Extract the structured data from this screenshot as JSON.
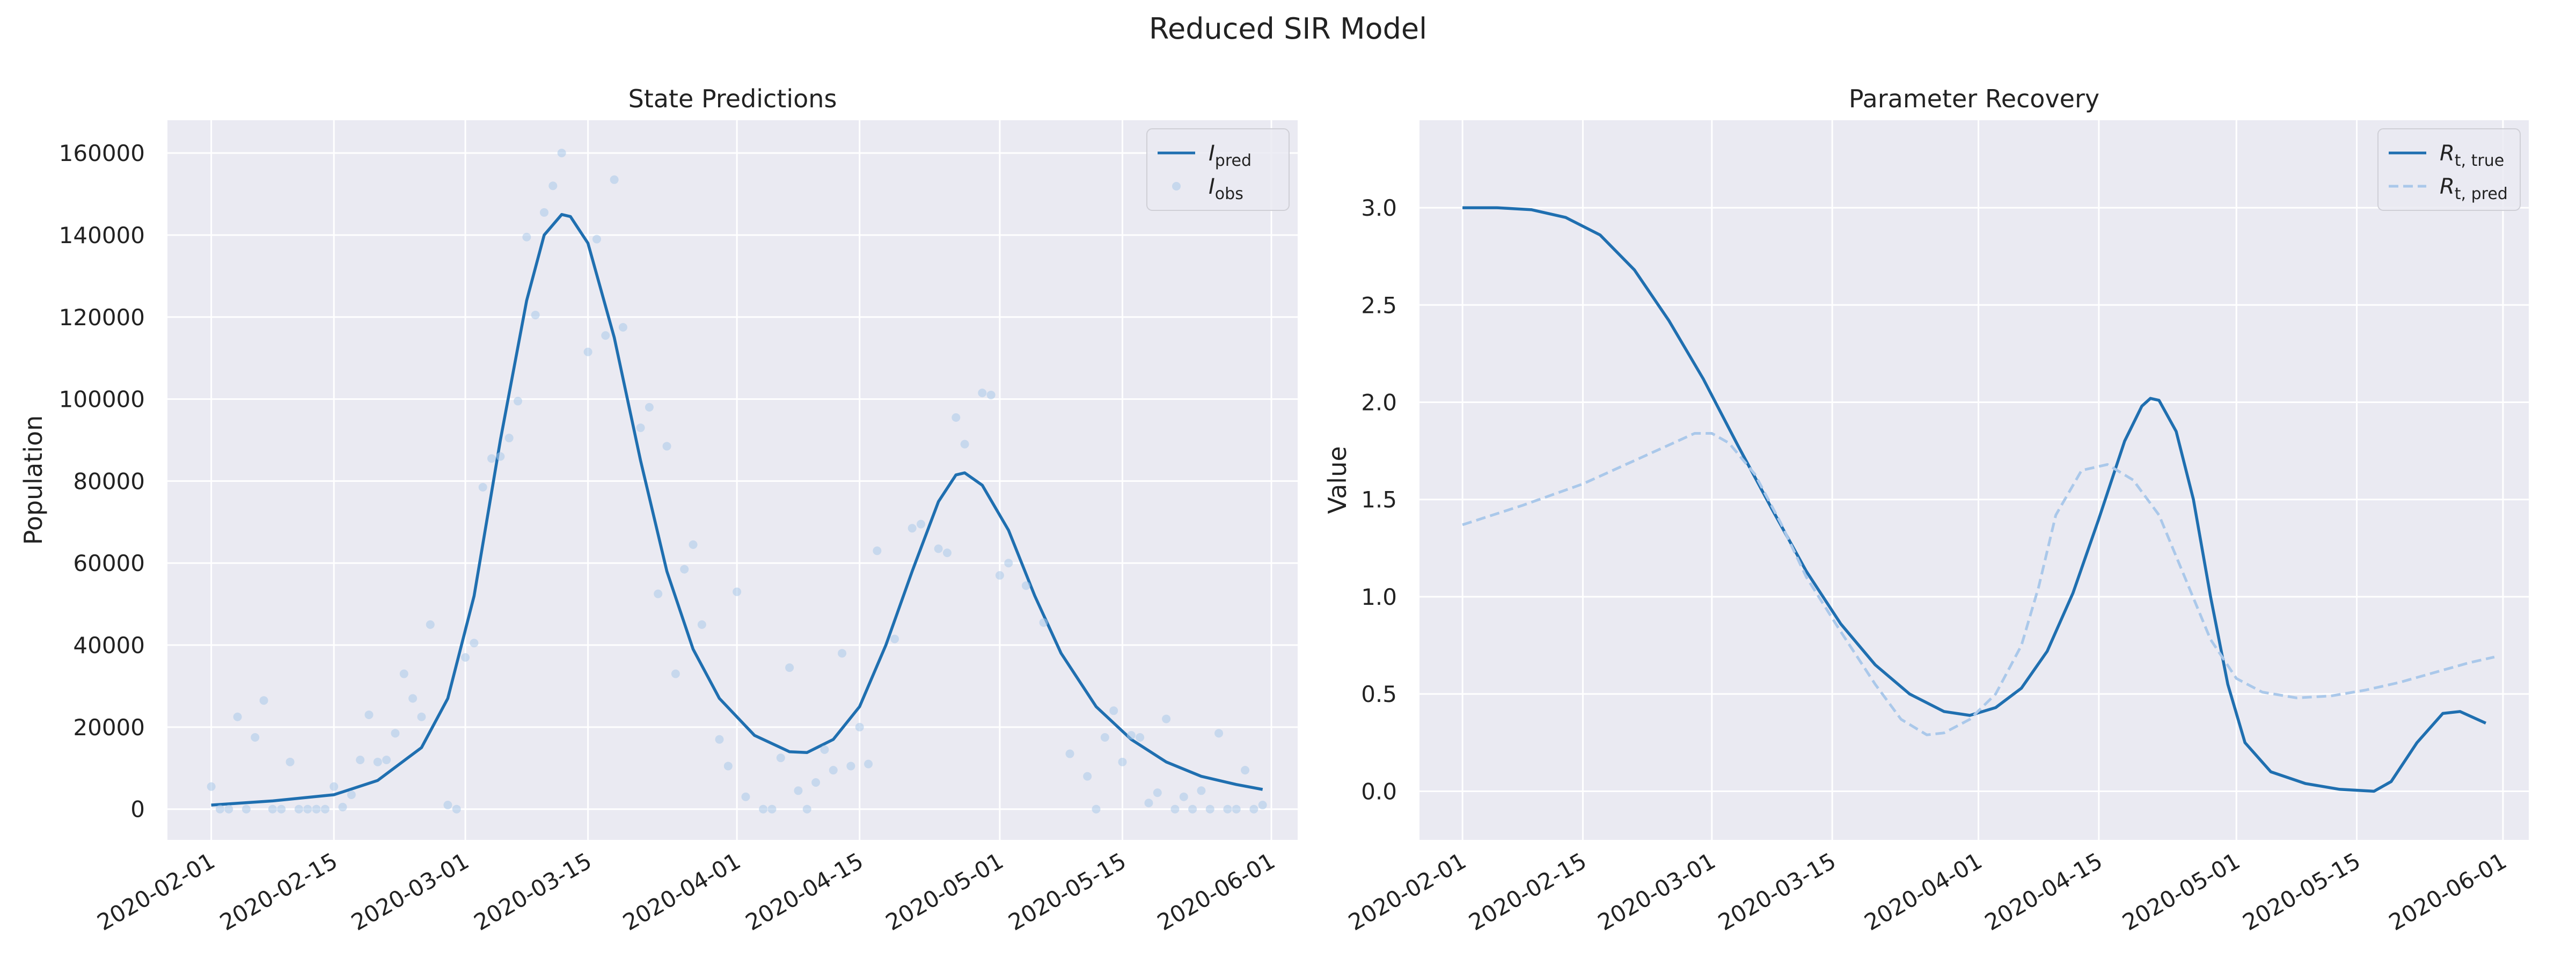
{
  "suptitle": "Reduced SIR Model",
  "colors": {
    "pred": "#1f6fb0",
    "obs": "#aac8ea",
    "panel_bg": "#eaeaf2",
    "grid": "#ffffff"
  },
  "chart_data": [
    {
      "type": "line",
      "title": "State Predictions",
      "xlabel": "",
      "ylabel": "Population",
      "xlim": [
        "2020-01-27",
        "2020-06-04"
      ],
      "ylim": [
        -7500,
        168000
      ],
      "grid": true,
      "legend_position": "top-right",
      "yticks": [
        "0",
        "20000",
        "40000",
        "60000",
        "80000",
        "100000",
        "120000",
        "140000",
        "160000"
      ],
      "xticks": [
        "2020-02-01",
        "2020-02-15",
        "2020-03-01",
        "2020-03-15",
        "2020-04-01",
        "2020-04-15",
        "2020-05-01",
        "2020-05-15",
        "2020-06-01"
      ],
      "series": [
        {
          "name_main": "I",
          "name_sub": "pred",
          "style": "solid",
          "points": [
            [
              "2020-02-01",
              1000
            ],
            [
              "2020-02-08",
              2000
            ],
            [
              "2020-02-15",
              3500
            ],
            [
              "2020-02-20",
              7000
            ],
            [
              "2020-02-25",
              15000
            ],
            [
              "2020-02-28",
              27000
            ],
            [
              "2020-03-02",
              52000
            ],
            [
              "2020-03-05",
              90000
            ],
            [
              "2020-03-08",
              124000
            ],
            [
              "2020-03-10",
              140000
            ],
            [
              "2020-03-12",
              145000
            ],
            [
              "2020-03-13",
              144500
            ],
            [
              "2020-03-15",
              138000
            ],
            [
              "2020-03-18",
              115000
            ],
            [
              "2020-03-21",
              85000
            ],
            [
              "2020-03-24",
              58000
            ],
            [
              "2020-03-27",
              39000
            ],
            [
              "2020-03-30",
              27000
            ],
            [
              "2020-04-03",
              18000
            ],
            [
              "2020-04-07",
              14000
            ],
            [
              "2020-04-09",
              13800
            ],
            [
              "2020-04-12",
              17000
            ],
            [
              "2020-04-15",
              25000
            ],
            [
              "2020-04-18",
              40000
            ],
            [
              "2020-04-21",
              58000
            ],
            [
              "2020-04-24",
              75000
            ],
            [
              "2020-04-26",
              81500
            ],
            [
              "2020-04-27",
              82000
            ],
            [
              "2020-04-29",
              79000
            ],
            [
              "2020-05-02",
              68000
            ],
            [
              "2020-05-05",
              52000
            ],
            [
              "2020-05-08",
              38000
            ],
            [
              "2020-05-12",
              25000
            ],
            [
              "2020-05-16",
              17000
            ],
            [
              "2020-05-20",
              11500
            ],
            [
              "2020-05-24",
              8000
            ],
            [
              "2020-05-28",
              6000
            ],
            [
              "2020-05-31",
              4800
            ]
          ]
        },
        {
          "name_main": "I",
          "name_sub": "obs",
          "style": "scatter",
          "points": [
            [
              "2020-02-01",
              5500
            ],
            [
              "2020-02-02",
              0
            ],
            [
              "2020-02-03",
              0
            ],
            [
              "2020-02-04",
              22500
            ],
            [
              "2020-02-05",
              0
            ],
            [
              "2020-02-06",
              17500
            ],
            [
              "2020-02-07",
              26500
            ],
            [
              "2020-02-08",
              0
            ],
            [
              "2020-02-09",
              0
            ],
            [
              "2020-02-10",
              11500
            ],
            [
              "2020-02-11",
              0
            ],
            [
              "2020-02-12",
              0
            ],
            [
              "2020-02-13",
              0
            ],
            [
              "2020-02-14",
              0
            ],
            [
              "2020-02-15",
              5500
            ],
            [
              "2020-02-16",
              500
            ],
            [
              "2020-02-17",
              3500
            ],
            [
              "2020-02-18",
              12000
            ],
            [
              "2020-02-19",
              23000
            ],
            [
              "2020-02-20",
              11500
            ],
            [
              "2020-02-21",
              12000
            ],
            [
              "2020-02-22",
              18500
            ],
            [
              "2020-02-23",
              33000
            ],
            [
              "2020-02-24",
              27000
            ],
            [
              "2020-02-25",
              22500
            ],
            [
              "2020-02-26",
              45000
            ],
            [
              "2020-02-28",
              1000
            ],
            [
              "2020-02-29",
              0
            ],
            [
              "2020-03-01",
              37000
            ],
            [
              "2020-03-02",
              40500
            ],
            [
              "2020-03-03",
              78500
            ],
            [
              "2020-03-04",
              85500
            ],
            [
              "2020-03-05",
              86000
            ],
            [
              "2020-03-06",
              90500
            ],
            [
              "2020-03-07",
              99500
            ],
            [
              "2020-03-08",
              139500
            ],
            [
              "2020-03-09",
              120500
            ],
            [
              "2020-03-10",
              145500
            ],
            [
              "2020-03-11",
              152000
            ],
            [
              "2020-03-12",
              160000
            ],
            [
              "2020-03-15",
              111500
            ],
            [
              "2020-03-16",
              139000
            ],
            [
              "2020-03-17",
              115500
            ],
            [
              "2020-03-18",
              153500
            ],
            [
              "2020-03-19",
              117500
            ],
            [
              "2020-03-21",
              93000
            ],
            [
              "2020-03-22",
              98000
            ],
            [
              "2020-03-23",
              52500
            ],
            [
              "2020-03-24",
              88500
            ],
            [
              "2020-03-25",
              33000
            ],
            [
              "2020-03-26",
              58500
            ],
            [
              "2020-03-27",
              64500
            ],
            [
              "2020-03-28",
              45000
            ],
            [
              "2020-03-30",
              17000
            ],
            [
              "2020-03-31",
              10500
            ],
            [
              "2020-04-01",
              53000
            ],
            [
              "2020-04-02",
              3000
            ],
            [
              "2020-04-04",
              0
            ],
            [
              "2020-04-05",
              0
            ],
            [
              "2020-04-06",
              12500
            ],
            [
              "2020-04-07",
              34500
            ],
            [
              "2020-04-08",
              4500
            ],
            [
              "2020-04-09",
              0
            ],
            [
              "2020-04-10",
              6500
            ],
            [
              "2020-04-11",
              14500
            ],
            [
              "2020-04-12",
              9500
            ],
            [
              "2020-04-13",
              38000
            ],
            [
              "2020-04-14",
              10500
            ],
            [
              "2020-04-15",
              20000
            ],
            [
              "2020-04-16",
              11000
            ],
            [
              "2020-04-17",
              63000
            ],
            [
              "2020-04-19",
              41500
            ],
            [
              "2020-04-21",
              68500
            ],
            [
              "2020-04-22",
              69500
            ],
            [
              "2020-04-24",
              63500
            ],
            [
              "2020-04-25",
              62500
            ],
            [
              "2020-04-26",
              95500
            ],
            [
              "2020-04-27",
              89000
            ],
            [
              "2020-04-29",
              101500
            ],
            [
              "2020-04-30",
              101000
            ],
            [
              "2020-05-01",
              57000
            ],
            [
              "2020-05-02",
              60000
            ],
            [
              "2020-05-04",
              54500
            ],
            [
              "2020-05-06",
              45500
            ],
            [
              "2020-05-09",
              13500
            ],
            [
              "2020-05-11",
              8000
            ],
            [
              "2020-05-12",
              0
            ],
            [
              "2020-05-13",
              17500
            ],
            [
              "2020-05-14",
              24000
            ],
            [
              "2020-05-15",
              11500
            ],
            [
              "2020-05-16",
              18000
            ],
            [
              "2020-05-17",
              17500
            ],
            [
              "2020-05-18",
              1500
            ],
            [
              "2020-05-19",
              4000
            ],
            [
              "2020-05-20",
              22000
            ],
            [
              "2020-05-21",
              0
            ],
            [
              "2020-05-22",
              3000
            ],
            [
              "2020-05-23",
              0
            ],
            [
              "2020-05-24",
              4500
            ],
            [
              "2020-05-25",
              0
            ],
            [
              "2020-05-26",
              18500
            ],
            [
              "2020-05-27",
              0
            ],
            [
              "2020-05-28",
              0
            ],
            [
              "2020-05-29",
              9500
            ],
            [
              "2020-05-30",
              0
            ],
            [
              "2020-05-31",
              1000
            ]
          ]
        }
      ]
    },
    {
      "type": "line",
      "title": "Parameter Recovery",
      "xlabel": "",
      "ylabel": "Value",
      "xlim": [
        "2020-01-27",
        "2020-06-04"
      ],
      "ylim": [
        -0.25,
        3.45
      ],
      "grid": true,
      "legend_position": "top-right",
      "yticks": [
        "0.0",
        "0.5",
        "1.0",
        "1.5",
        "2.0",
        "2.5",
        "3.0"
      ],
      "xticks": [
        "2020-02-01",
        "2020-02-15",
        "2020-03-01",
        "2020-03-15",
        "2020-04-01",
        "2020-04-15",
        "2020-05-01",
        "2020-05-15",
        "2020-06-01"
      ],
      "series": [
        {
          "name_main": "R",
          "name_sub": "t, true",
          "style": "solid",
          "points": [
            [
              "2020-02-01",
              3.0
            ],
            [
              "2020-02-05",
              3.0
            ],
            [
              "2020-02-09",
              2.99
            ],
            [
              "2020-02-13",
              2.95
            ],
            [
              "2020-02-17",
              2.86
            ],
            [
              "2020-02-21",
              2.68
            ],
            [
              "2020-02-25",
              2.42
            ],
            [
              "2020-02-29",
              2.12
            ],
            [
              "2020-03-04",
              1.78
            ],
            [
              "2020-03-08",
              1.45
            ],
            [
              "2020-03-12",
              1.13
            ],
            [
              "2020-03-16",
              0.86
            ],
            [
              "2020-03-20",
              0.65
            ],
            [
              "2020-03-24",
              0.5
            ],
            [
              "2020-03-28",
              0.41
            ],
            [
              "2020-03-31",
              0.39
            ],
            [
              "2020-04-03",
              0.43
            ],
            [
              "2020-04-06",
              0.53
            ],
            [
              "2020-04-09",
              0.72
            ],
            [
              "2020-04-12",
              1.02
            ],
            [
              "2020-04-15",
              1.4
            ],
            [
              "2020-04-18",
              1.8
            ],
            [
              "2020-04-20",
              1.98
            ],
            [
              "2020-04-21",
              2.02
            ],
            [
              "2020-04-22",
              2.01
            ],
            [
              "2020-04-24",
              1.85
            ],
            [
              "2020-04-26",
              1.5
            ],
            [
              "2020-04-28",
              1.0
            ],
            [
              "2020-04-30",
              0.55
            ],
            [
              "2020-05-02",
              0.25
            ],
            [
              "2020-05-05",
              0.1
            ],
            [
              "2020-05-09",
              0.04
            ],
            [
              "2020-05-13",
              0.01
            ],
            [
              "2020-05-17",
              0.0
            ],
            [
              "2020-05-19",
              0.05
            ],
            [
              "2020-05-22",
              0.25
            ],
            [
              "2020-05-25",
              0.4
            ],
            [
              "2020-05-27",
              0.41
            ],
            [
              "2020-05-30",
              0.35
            ]
          ]
        },
        {
          "name_main": "R",
          "name_sub": "t, pred",
          "style": "dashed",
          "points": [
            [
              "2020-02-01",
              1.37
            ],
            [
              "2020-02-08",
              1.47
            ],
            [
              "2020-02-15",
              1.58
            ],
            [
              "2020-02-22",
              1.72
            ],
            [
              "2020-02-26",
              1.8
            ],
            [
              "2020-02-28",
              1.84
            ],
            [
              "2020-03-01",
              1.84
            ],
            [
              "2020-03-03",
              1.79
            ],
            [
              "2020-03-06",
              1.63
            ],
            [
              "2020-03-09",
              1.38
            ],
            [
              "2020-03-12",
              1.1
            ],
            [
              "2020-03-16",
              0.82
            ],
            [
              "2020-03-20",
              0.55
            ],
            [
              "2020-03-23",
              0.37
            ],
            [
              "2020-03-26",
              0.29
            ],
            [
              "2020-03-28",
              0.3
            ],
            [
              "2020-03-31",
              0.37
            ],
            [
              "2020-04-03",
              0.5
            ],
            [
              "2020-04-06",
              0.75
            ],
            [
              "2020-04-08",
              1.05
            ],
            [
              "2020-04-10",
              1.42
            ],
            [
              "2020-04-13",
              1.65
            ],
            [
              "2020-04-16",
              1.68
            ],
            [
              "2020-04-19",
              1.6
            ],
            [
              "2020-04-22",
              1.42
            ],
            [
              "2020-04-25",
              1.1
            ],
            [
              "2020-04-28",
              0.78
            ],
            [
              "2020-05-01",
              0.58
            ],
            [
              "2020-05-04",
              0.51
            ],
            [
              "2020-05-08",
              0.48
            ],
            [
              "2020-05-12",
              0.49
            ],
            [
              "2020-05-16",
              0.52
            ],
            [
              "2020-05-20",
              0.56
            ],
            [
              "2020-05-24",
              0.61
            ],
            [
              "2020-05-28",
              0.66
            ],
            [
              "2020-05-31",
              0.69
            ]
          ]
        }
      ]
    }
  ]
}
